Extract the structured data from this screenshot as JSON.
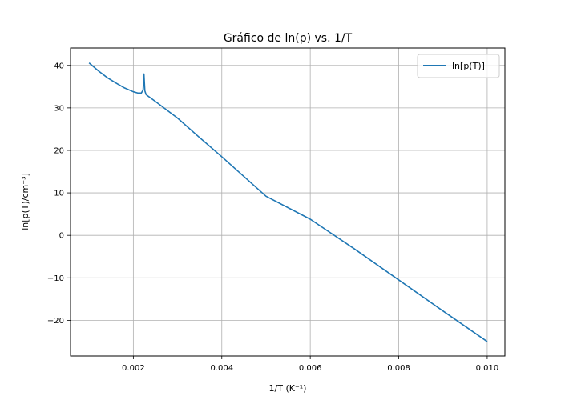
{
  "chart_data": {
    "type": "line",
    "title": "Gráfico de ln(p) vs. 1/T",
    "xlabel": "1/T (K⁻¹)",
    "ylabel": "ln[p(T)/cm⁻³]",
    "xlim": [
      0.00058,
      0.0104
    ],
    "ylim": [
      -28.4,
      44.1
    ],
    "x_ticks": [
      0.002,
      0.004,
      0.006,
      0.008,
      0.01
    ],
    "x_tick_labels": [
      "0.002",
      "0.004",
      "0.006",
      "0.008",
      "0.010"
    ],
    "y_ticks": [
      -20,
      -10,
      0,
      10,
      20,
      30,
      40
    ],
    "y_tick_labels": [
      "−20",
      "−10",
      "0",
      "10",
      "20",
      "30",
      "40"
    ],
    "grid": true,
    "legend_position": "top-right",
    "series": [
      {
        "name": "ln[p(T)]",
        "color": "#1f77b4",
        "points": [
          [
            0.001,
            40.6
          ],
          [
            0.0012,
            38.8
          ],
          [
            0.0014,
            37.2
          ],
          [
            0.0016,
            35.9
          ],
          [
            0.0018,
            34.7
          ],
          [
            0.002,
            33.8
          ],
          [
            0.0021,
            33.5
          ],
          [
            0.00218,
            33.5
          ],
          [
            0.00222,
            34.2
          ],
          [
            0.00224,
            38.0
          ],
          [
            0.00226,
            34.0
          ],
          [
            0.00229,
            33.1
          ],
          [
            0.0025,
            31.5
          ],
          [
            0.003,
            27.6
          ],
          [
            0.0035,
            23.0
          ],
          [
            0.004,
            18.5
          ],
          [
            0.005,
            9.2
          ],
          [
            0.006,
            3.8
          ],
          [
            0.007,
            -3.2
          ],
          [
            0.008,
            -10.5
          ],
          [
            0.009,
            -17.8
          ],
          [
            0.01,
            -25.0
          ]
        ]
      }
    ]
  }
}
